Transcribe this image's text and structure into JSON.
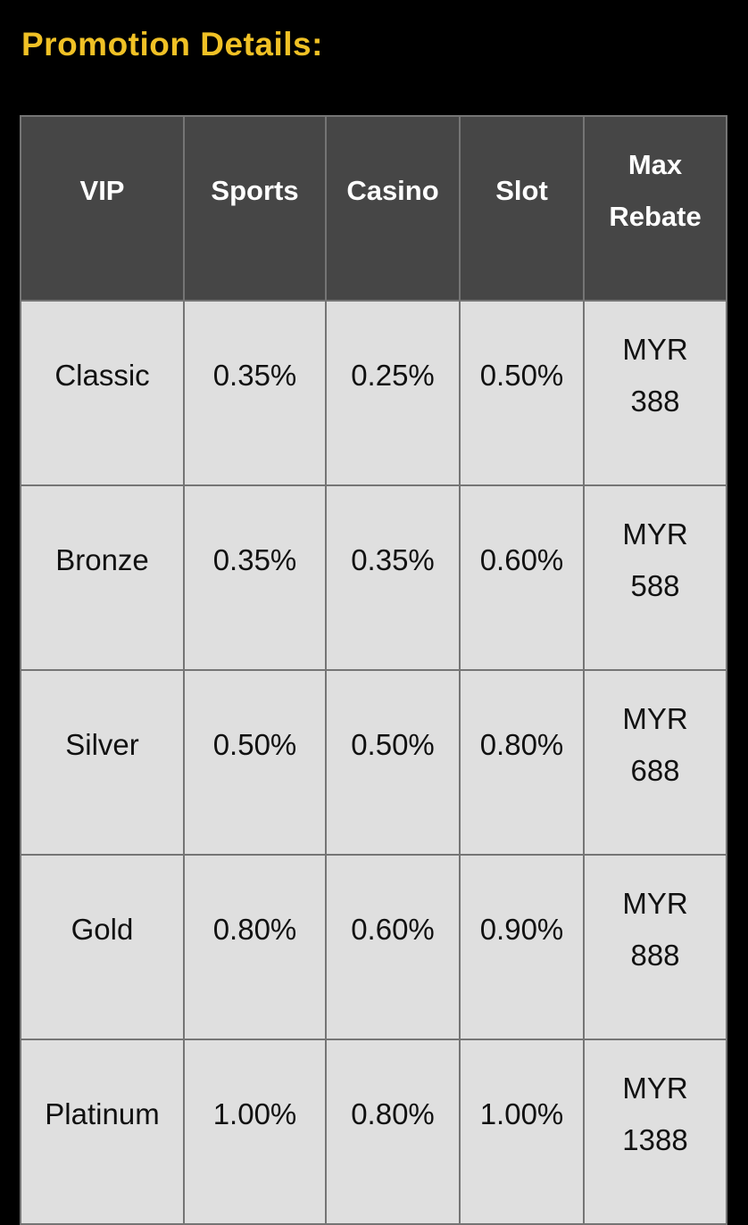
{
  "page": {
    "title": "Promotion Details:",
    "background_color": "#000000",
    "title_color": "#F0C125"
  },
  "table": {
    "header_bg_color": "#464646",
    "header_text_color": "#FFFFFF",
    "body_bg_color": "#DFDFDF",
    "body_text_color": "#111111",
    "border_color": "#757575",
    "columns": [
      "VIP",
      "Sports",
      "Casino",
      "Slot",
      "Max Rebate"
    ],
    "rows": [
      {
        "vip": "Classic",
        "sports": "0.35%",
        "casino": "0.25%",
        "slot": "0.50%",
        "rebate": {
          "currency": "MYR",
          "amount": "388"
        }
      },
      {
        "vip": "Bronze",
        "sports": "0.35%",
        "casino": "0.35%",
        "slot": "0.60%",
        "rebate": {
          "currency": "MYR",
          "amount": "588"
        }
      },
      {
        "vip": "Silver",
        "sports": "0.50%",
        "casino": "0.50%",
        "slot": "0.80%",
        "rebate": {
          "currency": "MYR",
          "amount": "688"
        }
      },
      {
        "vip": "Gold",
        "sports": "0.80%",
        "casino": "0.60%",
        "slot": "0.90%",
        "rebate": {
          "currency": "MYR",
          "amount": "888"
        }
      },
      {
        "vip": "Platinum",
        "sports": "1.00%",
        "casino": "0.80%",
        "slot": "1.00%",
        "rebate": {
          "currency": "MYR",
          "amount": "1388"
        }
      }
    ]
  }
}
